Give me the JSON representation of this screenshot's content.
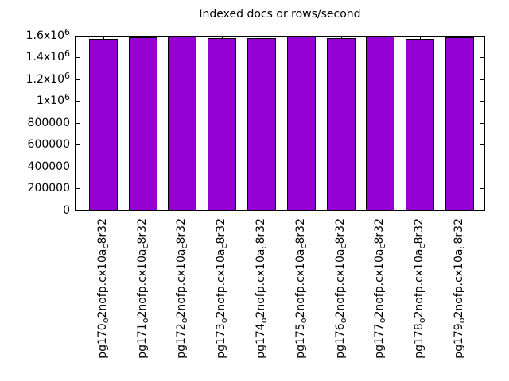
{
  "title": "Indexed docs or rows/second",
  "chart_data": {
    "type": "bar",
    "title": "Indexed docs or rows/second",
    "categories": [
      "pg170_o2nofp.cx10a_c8r32",
      "pg171_o2nofp.cx10a_c8r32",
      "pg172_o2nofp.cx10a_c8r32",
      "pg173_o2nofp.cx10a_c8r32",
      "pg174_o2nofp.cx10a_c8r32",
      "pg175_o2nofp.cx10a_c8r32",
      "pg176_o2nofp.cx10a_c8r32",
      "pg177_o2nofp.cx10a_c8r32",
      "pg178_o2nofp.cx10a_c8r32",
      "pg179_o2nofp.cx10a_c8r32"
    ],
    "values": [
      1572000,
      1582000,
      1600000,
      1577000,
      1577000,
      1591000,
      1577000,
      1590000,
      1572000,
      1582000
    ],
    "xlabel": "",
    "ylabel": "",
    "ylim": [
      0,
      1600000
    ],
    "yticks": [
      {
        "label": "1.6x10",
        "sup": "6",
        "value": 1600000
      },
      {
        "label": "1.4x10",
        "sup": "6",
        "value": 1400000
      },
      {
        "label": "1.2x10",
        "sup": "6",
        "value": 1200000
      },
      {
        "label": "1x10",
        "sup": "6",
        "value": 1000000
      },
      {
        "label": "800000",
        "sup": "",
        "value": 800000
      },
      {
        "label": "600000",
        "sup": "",
        "value": 600000
      },
      {
        "label": "400000",
        "sup": "",
        "value": 400000
      },
      {
        "label": "200000",
        "sup": "",
        "value": 200000
      },
      {
        "label": "0",
        "sup": "",
        "value": 0
      }
    ],
    "grid": false,
    "legend_position": "none",
    "bar_color": "#9400d3",
    "bar_border_color": "#000000",
    "background_color": "#ffffff",
    "text_color": "#000000"
  }
}
